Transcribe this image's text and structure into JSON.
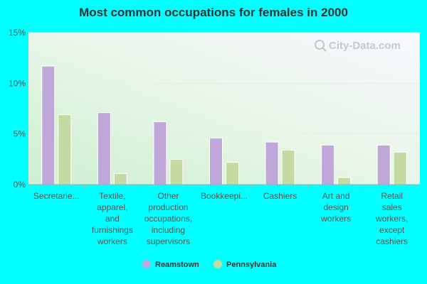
{
  "chart_data": {
    "type": "bar",
    "title": "Most common occupations for females in 2000",
    "xlabel": "",
    "ylabel": "",
    "ylim": [
      0,
      15
    ],
    "yticks": [
      0,
      5,
      10,
      15
    ],
    "ytick_labels": [
      "0%",
      "5%",
      "10%",
      "15%"
    ],
    "categories": [
      [
        "Secretarie..."
      ],
      [
        "Textile,",
        "apparel,",
        "and",
        "furnishings",
        "workers"
      ],
      [
        "Other",
        "production",
        "occupations,",
        "including",
        "supervisors"
      ],
      [
        "Bookkeepi..."
      ],
      [
        "Cashiers"
      ],
      [
        "Art and",
        "design",
        "workers"
      ],
      [
        "Retail",
        "sales",
        "workers,",
        "except",
        "cashiers"
      ]
    ],
    "series": [
      {
        "name": "Reamstown",
        "color": "#BFA8D9",
        "values": [
          11.7,
          7.1,
          6.2,
          4.6,
          4.2,
          3.9,
          3.9
        ]
      },
      {
        "name": "Pennsylvania",
        "color": "#C5D9A3",
        "values": [
          6.9,
          1.1,
          2.5,
          2.2,
          3.4,
          0.7,
          3.2
        ]
      }
    ],
    "grid": true,
    "legend_position": "bottom-center",
    "watermark": "City-Data.com"
  }
}
